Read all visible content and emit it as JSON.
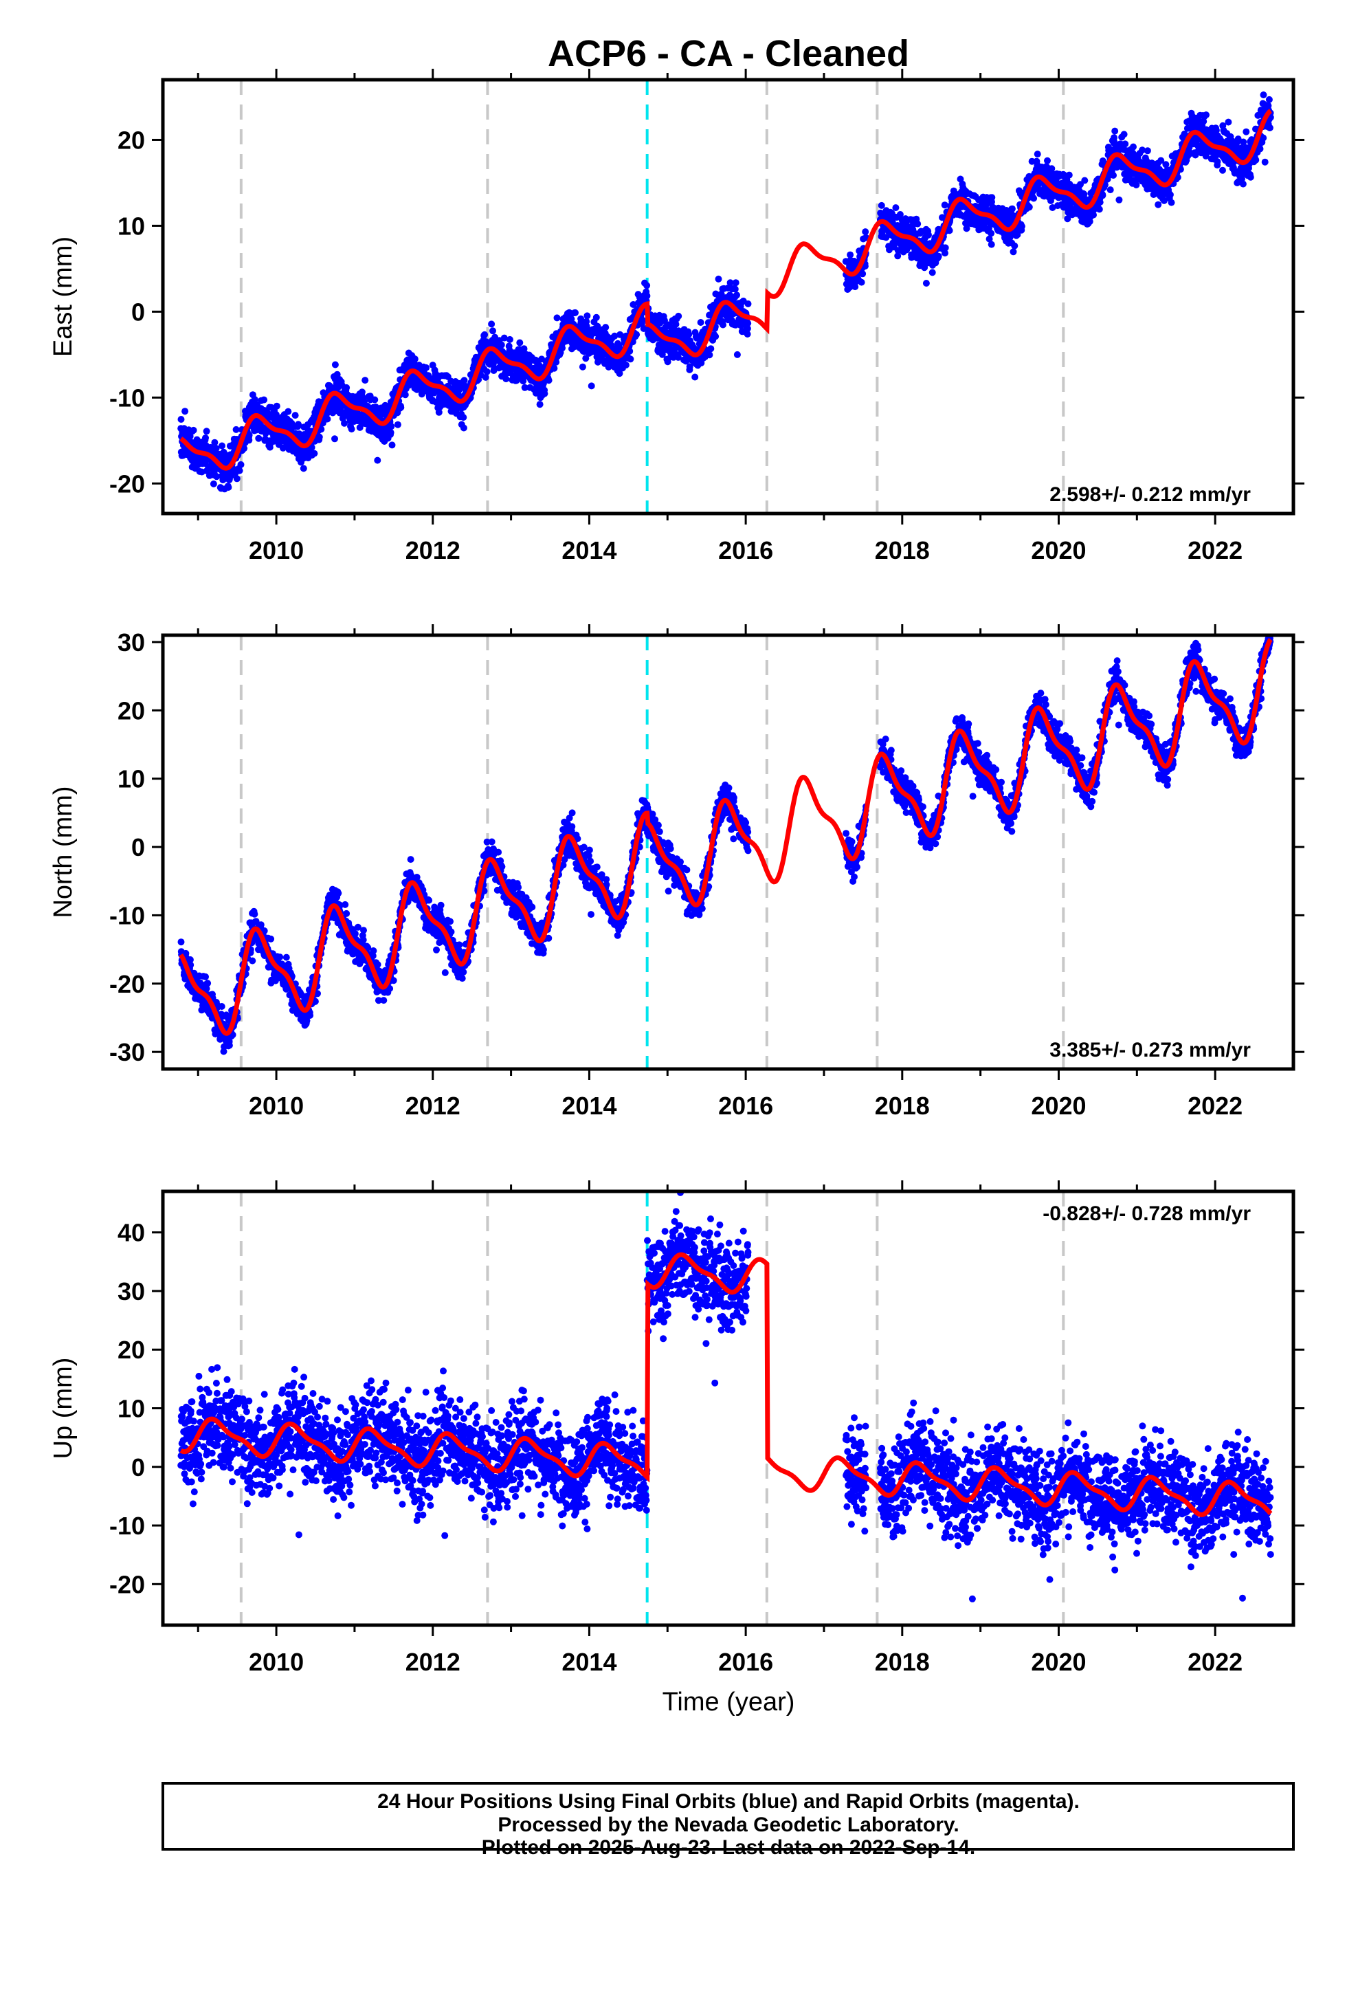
{
  "title": "ACP6  - CA - Cleaned",
  "xlabel": "Time (year)",
  "colors": {
    "points": "#0000ff",
    "model": "#ff0000",
    "equipment_change": "#c8c8c8",
    "earthquake": "#00e5ee",
    "frame": "#000000"
  },
  "footer": {
    "line1": "24 Hour Positions Using Final Orbits (blue) and Rapid Orbits (magenta).",
    "line2": "Processed by the Nevada Geodetic Laboratory.",
    "line3": "Plotted on 2025-Aug-23. Last data on 2022-Sep-14."
  },
  "chart_data": [
    {
      "type": "scatter",
      "component": "East",
      "ylabel": "East (mm)",
      "rate": "2.598+/- 0.212 mm/yr",
      "rate_position": "bottom-right",
      "xlim": [
        2008.55,
        2023.0
      ],
      "ylim": [
        -23.5,
        27
      ],
      "xticks": [
        2010,
        2012,
        2014,
        2016,
        2018,
        2020,
        2022
      ],
      "yticks": [
        -20,
        -10,
        0,
        10,
        20
      ],
      "grey_lines": [
        2009.55,
        2012.7,
        2016.27,
        2017.68,
        2020.06
      ],
      "cyan_lines": [
        2014.74
      ],
      "data_spans": [
        [
          2008.78,
          2016.03
        ],
        [
          2017.28,
          2017.54
        ],
        [
          2017.72,
          2022.71
        ]
      ],
      "model": {
        "trend_rate": 2.598,
        "trend_ref_year": 2015.5,
        "trend_ref_value": 0.3,
        "annual_amplitude": 2.2,
        "annual_phase": 0.55,
        "offsets": [
          [
            2014.74,
            -2.4
          ],
          [
            2016.27,
            4.2
          ]
        ],
        "gaps_end": 2022.71
      },
      "noise": 1.6
    },
    {
      "type": "scatter",
      "component": "North",
      "ylabel": "North (mm)",
      "rate": "3.385+/- 0.273 mm/yr",
      "rate_position": "bottom-right",
      "xlim": [
        2008.55,
        2023.0
      ],
      "ylim": [
        -32.5,
        31
      ],
      "xticks": [
        2010,
        2012,
        2014,
        2016,
        2018,
        2020,
        2022
      ],
      "yticks": [
        -30,
        -20,
        -10,
        0,
        10,
        20,
        30
      ],
      "grey_lines": [
        2009.55,
        2012.7,
        2016.27,
        2017.68,
        2020.06
      ],
      "cyan_lines": [
        2014.74
      ],
      "data_spans": [
        [
          2008.78,
          2016.03
        ],
        [
          2017.28,
          2017.54
        ],
        [
          2017.72,
          2022.71
        ]
      ],
      "model": {
        "trend_rate": 3.385,
        "trend_ref_year": 2015.5,
        "trend_ref_value": 0.5,
        "annual_amplitude": 6.0,
        "annual_phase": 0.55,
        "offsets": [
          [
            2014.74,
            -1.5
          ]
        ],
        "gaps_end": 2022.71
      },
      "noise": 1.8
    },
    {
      "type": "scatter",
      "component": "Up",
      "ylabel": "Up (mm)",
      "rate": "-0.828+/- 0.728 mm/yr",
      "rate_position": "top-right",
      "xlim": [
        2008.55,
        2023.0
      ],
      "ylim": [
        -27,
        47
      ],
      "xticks": [
        2010,
        2012,
        2014,
        2016,
        2018,
        2020,
        2022
      ],
      "yticks": [
        -20,
        -10,
        0,
        10,
        20,
        30,
        40
      ],
      "grey_lines": [
        2009.55,
        2012.7,
        2016.27,
        2017.68,
        2020.06
      ],
      "cyan_lines": [
        2014.74
      ],
      "data_spans": [
        [
          2008.78,
          2016.03
        ],
        [
          2017.28,
          2017.54
        ],
        [
          2017.72,
          2022.71
        ]
      ],
      "model": {
        "trend_rate": -0.828,
        "trend_ref_year": 2015.5,
        "trend_ref_value": 0.0,
        "annual_amplitude": 2.5,
        "annual_phase": 0.0,
        "offsets": [
          [
            2014.74,
            33.0
          ],
          [
            2016.27,
            -33.0
          ]
        ],
        "gaps_end": 2022.71
      },
      "noise": 5.5
    }
  ]
}
